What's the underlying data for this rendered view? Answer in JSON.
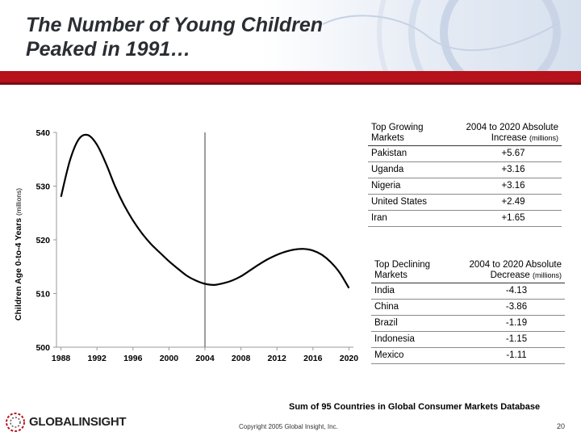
{
  "slide": {
    "title_line1": "The Number of Young Children",
    "title_line2": "Peaked in 1991…",
    "footnote": "Sum of 95 Countries in Global Consumer Markets Database",
    "copyright": "Copyright 2005 Global Insight, Inc.",
    "page_number": "20",
    "logo_text": "GLOBALINSIGHT",
    "colors": {
      "red_bar": "#b5121b",
      "line": "#000000",
      "marker_line": "#7f7f7f"
    }
  },
  "chart_data": {
    "type": "line",
    "title": "",
    "xlabel": "",
    "ylabel_main": "Children Age 0-to-4 Years ",
    "ylabel_unit": "(millions)",
    "ylim": [
      500,
      540
    ],
    "xlim": [
      1987.5,
      2020.5
    ],
    "y_ticks": [
      "500",
      "510",
      "520",
      "530",
      "540"
    ],
    "x_ticks": [
      "1988",
      "1992",
      "1996",
      "2000",
      "2004",
      "2008",
      "2012",
      "2016",
      "2020"
    ],
    "vertical_marker_x": 2004,
    "series": [
      {
        "name": "Children Age 0-to-4 Years",
        "x": [
          1988,
          1989,
          1990,
          1991,
          1992,
          1993,
          1994,
          1995,
          1996,
          1997,
          1998,
          1999,
          2000,
          2001,
          2002,
          2003,
          2004,
          2005,
          2006,
          2007,
          2008,
          2009,
          2010,
          2011,
          2012,
          2013,
          2014,
          2015,
          2016,
          2017,
          2018,
          2019,
          2020
        ],
        "values": [
          528.0,
          534.8,
          538.8,
          539.5,
          537.7,
          534.2,
          530.0,
          526.5,
          523.6,
          521.2,
          519.2,
          517.6,
          516.0,
          514.6,
          513.3,
          512.4,
          511.8,
          511.6,
          511.9,
          512.4,
          513.2,
          514.3,
          515.4,
          516.4,
          517.2,
          517.8,
          518.2,
          518.3,
          518.0,
          517.2,
          515.8,
          513.8,
          511.0
        ]
      }
    ]
  },
  "growing_table": {
    "header_col1_line1": "Top Growing",
    "header_col1_line2": "Markets",
    "header_col2_line1": "2004 to 2020 Absolute",
    "header_col2_line2": "Increase ",
    "header_col2_unit": "(millions)",
    "rows": [
      {
        "name": "Pakistan",
        "value": "+5.67"
      },
      {
        "name": "Uganda",
        "value": "+3.16"
      },
      {
        "name": "Nigeria",
        "value": "+3.16"
      },
      {
        "name": "United States",
        "value": "+2.49"
      },
      {
        "name": "Iran",
        "value": "+1.65"
      }
    ]
  },
  "declining_table": {
    "header_col1_line1": "Top Declining",
    "header_col1_line2": "Markets",
    "header_col2_line1": "2004 to 2020 Absolute",
    "header_col2_line2": "Decrease ",
    "header_col2_unit": "(millions)",
    "rows": [
      {
        "name": "India",
        "value": "-4.13"
      },
      {
        "name": "China",
        "value": "-3.86"
      },
      {
        "name": "Brazil",
        "value": "-1.19"
      },
      {
        "name": "Indonesia",
        "value": "-1.15"
      },
      {
        "name": "Mexico",
        "value": "-1.11"
      }
    ]
  }
}
